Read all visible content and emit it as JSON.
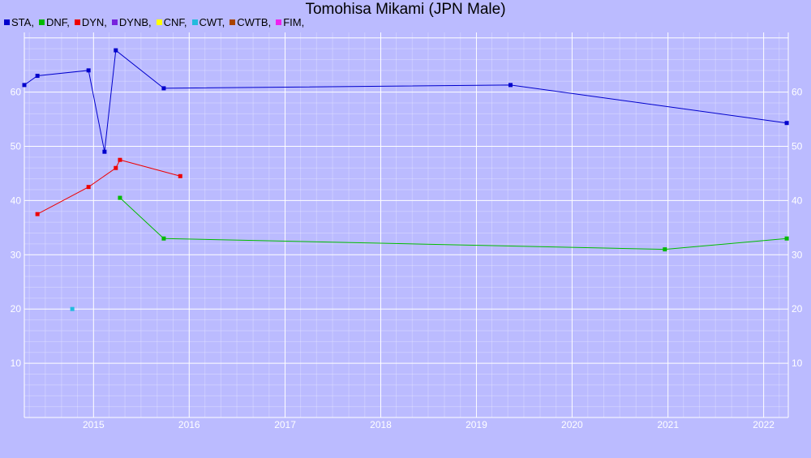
{
  "chart_data": {
    "type": "line",
    "title": "Tomohisa Mikami (JPN Male)",
    "xlabel": "",
    "ylabel": "",
    "xlim": [
      "2014-04-12",
      "2022-04-05"
    ],
    "ylim": [
      0,
      71
    ],
    "x_ticks": [
      "2015",
      "2016",
      "2017",
      "2018",
      "2019",
      "2020",
      "2021",
      "2022"
    ],
    "y_ticks": [
      10,
      20,
      30,
      40,
      50,
      60
    ],
    "grid": true,
    "legend_position": "top-left",
    "series": [
      {
        "name": "STA,",
        "color": "#0000cc",
        "x": [
          "2014-04-12",
          "2014-06-01",
          "2014-12-13",
          "2015-02-12",
          "2015-03-27",
          "2015-09-26",
          "2019-05-11",
          "2022-03-30"
        ],
        "y": [
          61.3,
          63.0,
          64.0,
          49.0,
          67.7,
          60.7,
          61.3,
          54.3
        ]
      },
      {
        "name": "DNF,",
        "color": "#00bb00",
        "x": [
          "2015-04-12",
          "2015-09-26",
          "2020-12-20",
          "2022-03-30"
        ],
        "y": [
          40.5,
          33.0,
          31.0,
          33.0
        ]
      },
      {
        "name": "DYN,",
        "color": "#ee0000",
        "x": [
          "2014-06-01",
          "2014-12-13",
          "2015-03-27",
          "2015-04-12",
          "2015-11-28"
        ],
        "y": [
          37.5,
          42.5,
          46.0,
          47.5,
          44.5
        ]
      },
      {
        "name": "DYNB,",
        "color": "#7722dd",
        "x": [],
        "y": []
      },
      {
        "name": "CNF,",
        "color": "#ffff00",
        "x": [],
        "y": []
      },
      {
        "name": "CWT,",
        "color": "#22bbdd",
        "x": [
          "2014-10-12"
        ],
        "y": [
          20.0
        ]
      },
      {
        "name": "CWTB,",
        "color": "#aa4400",
        "x": [],
        "y": []
      },
      {
        "name": "FIM,",
        "color": "#ee22ee",
        "x": [],
        "y": []
      }
    ]
  }
}
